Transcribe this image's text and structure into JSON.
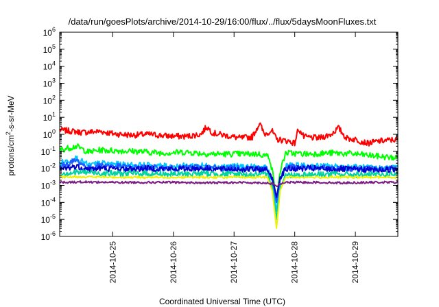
{
  "chart_data": {
    "type": "line",
    "title": "/data/run/goesPlots/archive/2014-10-29/16:00/flux/../flux/5daysMoonFluxes.txt",
    "xlabel": "Coordinated Universal Time (UTC)",
    "ylabel": {
      "base": "protons/cm",
      "sup": "2",
      "rest": "-s-sr-MeV"
    },
    "yscale": "log",
    "ylim_exp": [
      -6,
      6
    ],
    "ytick_base": "10",
    "xlim_days": [
      24.125,
      29.7
    ],
    "x_ticks": [
      {
        "label": "2014-10-25",
        "day": 25
      },
      {
        "label": "2014-10-26",
        "day": 26
      },
      {
        "label": "2014-10-27",
        "day": 27
      },
      {
        "label": "2014-10-28",
        "day": 28
      },
      {
        "label": "2014-10-29",
        "day": 29
      }
    ],
    "grid": false,
    "legend": "none",
    "series": [
      {
        "color": "#ff0000",
        "points": [
          [
            24.125,
            1.8
          ],
          [
            24.5,
            1.3
          ],
          [
            24.8,
            1.5
          ],
          [
            25.0,
            1.1
          ],
          [
            25.3,
            0.9
          ],
          [
            25.6,
            1.0
          ],
          [
            25.9,
            0.8
          ],
          [
            26.2,
            0.75
          ],
          [
            26.45,
            1.0
          ],
          [
            26.55,
            2.8
          ],
          [
            26.65,
            1.2
          ],
          [
            26.9,
            0.8
          ],
          [
            27.1,
            0.6
          ],
          [
            27.3,
            0.7
          ],
          [
            27.42,
            4.5
          ],
          [
            27.5,
            1.0
          ],
          [
            27.62,
            1.7
          ],
          [
            27.7,
            0.5
          ],
          [
            27.9,
            0.4
          ],
          [
            28.0,
            0.3
          ],
          [
            28.06,
            2.2
          ],
          [
            28.15,
            0.7
          ],
          [
            28.4,
            0.6
          ],
          [
            28.6,
            1.0
          ],
          [
            28.72,
            2.4
          ],
          [
            28.85,
            0.6
          ],
          [
            29.0,
            0.5
          ],
          [
            29.2,
            0.3
          ],
          [
            29.4,
            0.4
          ],
          [
            29.7,
            0.5
          ]
        ]
      },
      {
        "color": "#00ff00",
        "points": [
          [
            24.125,
            0.12
          ],
          [
            24.4,
            0.2
          ],
          [
            24.6,
            0.09
          ],
          [
            24.8,
            0.12
          ],
          [
            25.0,
            0.11
          ],
          [
            25.4,
            0.1
          ],
          [
            25.8,
            0.08
          ],
          [
            26.2,
            0.09
          ],
          [
            26.6,
            0.07
          ],
          [
            27.0,
            0.07
          ],
          [
            27.4,
            0.07
          ],
          [
            27.58,
            0.05
          ],
          [
            27.65,
            0.003
          ],
          [
            27.7,
            0.0001
          ],
          [
            27.75,
            0.005
          ],
          [
            27.85,
            0.08
          ],
          [
            28.2,
            0.07
          ],
          [
            28.6,
            0.08
          ],
          [
            29.0,
            0.07
          ],
          [
            29.4,
            0.05
          ],
          [
            29.7,
            0.04
          ]
        ]
      },
      {
        "color": "#00c8ff",
        "points": [
          [
            24.125,
            0.02
          ],
          [
            24.4,
            0.04
          ],
          [
            24.6,
            0.015
          ],
          [
            24.8,
            0.02
          ],
          [
            25.2,
            0.016
          ],
          [
            25.6,
            0.015
          ],
          [
            26.0,
            0.013
          ],
          [
            26.4,
            0.015
          ],
          [
            26.8,
            0.013
          ],
          [
            27.2,
            0.013
          ],
          [
            27.55,
            0.01
          ],
          [
            27.63,
            0.002
          ],
          [
            27.7,
            3e-05
          ],
          [
            27.76,
            0.002
          ],
          [
            27.85,
            0.015
          ],
          [
            28.2,
            0.014
          ],
          [
            28.6,
            0.013
          ],
          [
            29.0,
            0.012
          ],
          [
            29.4,
            0.01
          ],
          [
            29.7,
            0.012
          ]
        ]
      },
      {
        "color": "#1e5aff",
        "points": [
          [
            24.125,
            0.012
          ],
          [
            24.4,
            0.03
          ],
          [
            24.6,
            0.01
          ],
          [
            24.8,
            0.016
          ],
          [
            25.2,
            0.012
          ],
          [
            25.6,
            0.011
          ],
          [
            26.0,
            0.01
          ],
          [
            26.4,
            0.012
          ],
          [
            26.8,
            0.01
          ],
          [
            27.2,
            0.011
          ],
          [
            27.55,
            0.009
          ],
          [
            27.63,
            0.002
          ],
          [
            27.7,
            0.0001
          ],
          [
            27.76,
            0.002
          ],
          [
            27.85,
            0.012
          ],
          [
            28.2,
            0.011
          ],
          [
            28.6,
            0.01
          ],
          [
            29.0,
            0.01
          ],
          [
            29.4,
            0.009
          ],
          [
            29.7,
            0.01
          ]
        ]
      },
      {
        "color": "#0000cd",
        "points": [
          [
            24.125,
            0.009
          ],
          [
            24.4,
            0.013
          ],
          [
            24.6,
            0.009
          ],
          [
            24.8,
            0.01
          ],
          [
            25.2,
            0.009
          ],
          [
            25.6,
            0.01
          ],
          [
            26.0,
            0.009
          ],
          [
            26.4,
            0.01
          ],
          [
            26.8,
            0.009
          ],
          [
            27.2,
            0.009
          ],
          [
            27.55,
            0.008
          ],
          [
            27.63,
            0.003
          ],
          [
            27.7,
            0.0002
          ],
          [
            27.76,
            0.003
          ],
          [
            27.85,
            0.009
          ],
          [
            28.2,
            0.01
          ],
          [
            28.6,
            0.009
          ],
          [
            29.0,
            0.009
          ],
          [
            29.4,
            0.008
          ],
          [
            29.7,
            0.009
          ]
        ]
      },
      {
        "color": "#00d2a0",
        "points": [
          [
            24.125,
            0.005
          ],
          [
            24.5,
            0.006
          ],
          [
            25.0,
            0.005
          ],
          [
            25.5,
            0.005
          ],
          [
            26.0,
            0.0045
          ],
          [
            26.5,
            0.005
          ],
          [
            27.0,
            0.0045
          ],
          [
            27.55,
            0.004
          ],
          [
            27.63,
            0.001
          ],
          [
            27.7,
            1e-05
          ],
          [
            27.76,
            0.001
          ],
          [
            27.85,
            0.004
          ],
          [
            28.3,
            0.0045
          ],
          [
            28.8,
            0.0045
          ],
          [
            29.3,
            0.004
          ],
          [
            29.7,
            0.0045
          ]
        ]
      },
      {
        "color": "#f0f000",
        "points": [
          [
            24.125,
            0.003
          ],
          [
            24.5,
            0.0032
          ],
          [
            25.0,
            0.003
          ],
          [
            25.5,
            0.003
          ],
          [
            26.0,
            0.003
          ],
          [
            26.5,
            0.003
          ],
          [
            27.0,
            0.003
          ],
          [
            27.55,
            0.003
          ],
          [
            27.63,
            0.0005
          ],
          [
            27.7,
            3e-06
          ],
          [
            27.76,
            0.0005
          ],
          [
            27.85,
            0.003
          ],
          [
            28.3,
            0.003
          ],
          [
            28.8,
            0.003
          ],
          [
            29.3,
            0.003
          ],
          [
            29.7,
            0.003
          ]
        ]
      },
      {
        "color": "#7a1e82",
        "points": [
          [
            24.125,
            0.0015
          ],
          [
            24.5,
            0.0016
          ],
          [
            25.0,
            0.0015
          ],
          [
            25.5,
            0.0015
          ],
          [
            26.0,
            0.0015
          ],
          [
            26.5,
            0.0014
          ],
          [
            27.0,
            0.0015
          ],
          [
            27.55,
            0.0014
          ],
          [
            27.64,
            0.0012
          ],
          [
            27.7,
            0.0009
          ],
          [
            27.76,
            0.0012
          ],
          [
            27.85,
            0.0015
          ],
          [
            28.3,
            0.0015
          ],
          [
            28.8,
            0.0014
          ],
          [
            29.3,
            0.0015
          ],
          [
            29.7,
            0.0015
          ]
        ]
      }
    ]
  }
}
